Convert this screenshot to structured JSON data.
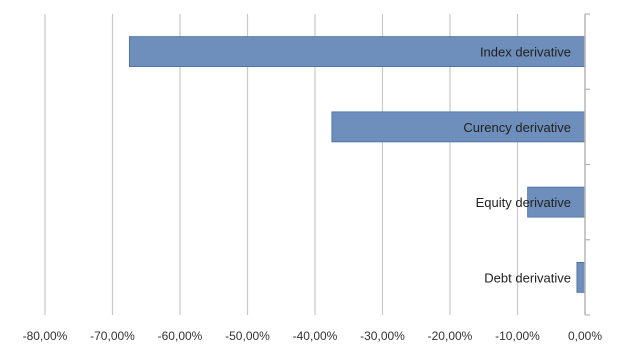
{
  "chart_data": {
    "type": "bar",
    "orientation": "horizontal",
    "categories": [
      "Index derivative",
      "Curency derivative",
      "Equity derivative",
      "Debt derivative"
    ],
    "series": [
      {
        "values": [
          -0.675,
          -0.375,
          -0.085,
          -0.012
        ]
      }
    ],
    "xlim": [
      -0.8,
      0
    ],
    "xticks": [
      -0.8,
      -0.7,
      -0.6,
      -0.5,
      -0.4,
      -0.3,
      -0.2,
      -0.1,
      0
    ],
    "xtick_labels": [
      "-80,00%",
      "-70,00%",
      "-60,00%",
      "-50,00%",
      "-40,00%",
      "-30,00%",
      "-20,00%",
      "-10,00%",
      "0,00%"
    ],
    "grid": "vertical",
    "legend": "none",
    "title": "",
    "xlabel": "",
    "ylabel": "",
    "bar_color": "#6e8ebc",
    "bar_edge_color": "#4a6d9c",
    "grid_color": "#c9c9c9",
    "axis_color": "#b5b5b5"
  }
}
